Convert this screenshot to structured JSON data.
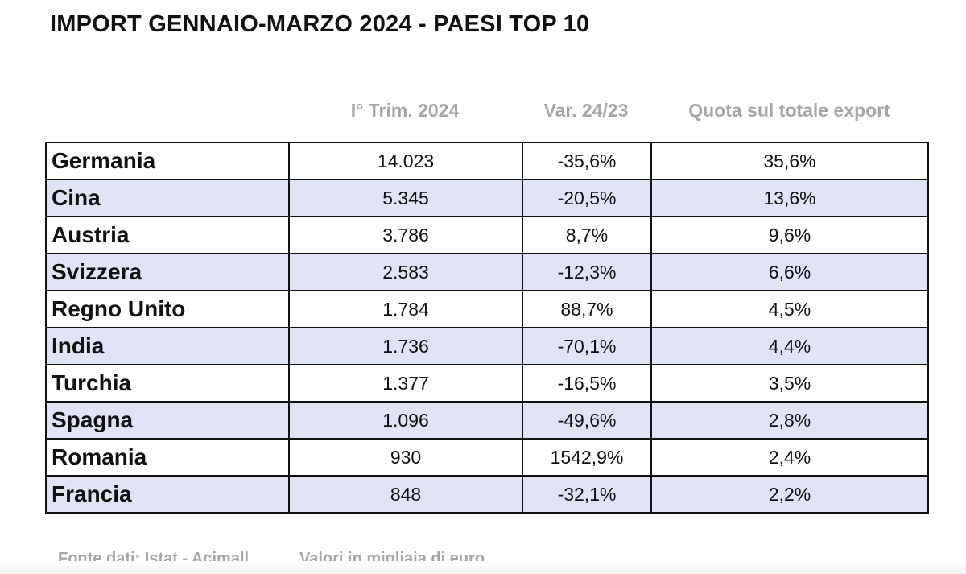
{
  "chart_data": {
    "type": "table",
    "title": "IMPORT GENNAIO-MARZO 2024 - PAESI TOP 10",
    "columns": [
      "I° Trim. 2024",
      "Var. 24/23",
      "Quota sul totale export"
    ],
    "rows": [
      {
        "country": "Germania",
        "value": "14.023",
        "var": "-35,6%",
        "share": "35,6%"
      },
      {
        "country": "Cina",
        "value": "5.345",
        "var": "-20,5%",
        "share": "13,6%"
      },
      {
        "country": "Austria",
        "value": "3.786",
        "var": "8,7%",
        "share": "9,6%"
      },
      {
        "country": "Svizzera",
        "value": "2.583",
        "var": "-12,3%",
        "share": "6,6%"
      },
      {
        "country": "Regno Unito",
        "value": "1.784",
        "var": "88,7%",
        "share": "4,5%"
      },
      {
        "country": "India",
        "value": "1.736",
        "var": "-70,1%",
        "share": "4,4%"
      },
      {
        "country": "Turchia",
        "value": "1.377",
        "var": "-16,5%",
        "share": "3,5%"
      },
      {
        "country": "Spagna",
        "value": "1.096",
        "var": "-49,6%",
        "share": "2,8%"
      },
      {
        "country": "Romania",
        "value": "930",
        "var": "1542,9%",
        "share": "2,4%"
      },
      {
        "country": "Francia",
        "value": "848",
        "var": "-32,1%",
        "share": "2,2%"
      }
    ],
    "source": "Fonte dati: Istat - Acimall",
    "unit_note": "Valori in migliaia di euro"
  },
  "colors": {
    "shaded_row": "#dfe3f3",
    "header_text": "#a6a6a6",
    "border": "#111111"
  }
}
